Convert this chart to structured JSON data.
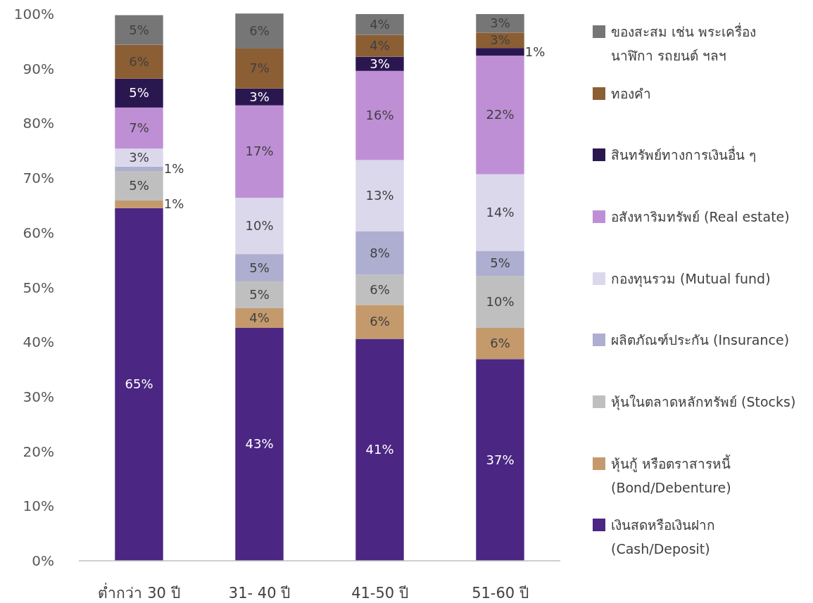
{
  "chart_data": {
    "type": "bar",
    "stacked": true,
    "legend": "right",
    "grid": false,
    "categories": [
      "ต่ำกว่า 30 ปี",
      "31- 40 ปี",
      "41-50 ปี",
      "51-60 ปี"
    ],
    "ylim": [
      0,
      100
    ],
    "yticks": [
      {
        "value": 0,
        "label": "0%"
      },
      {
        "value": 10,
        "label": "10%"
      },
      {
        "value": 20,
        "label": "20%"
      },
      {
        "value": 30,
        "label": "30%"
      },
      {
        "value": 40,
        "label": "40%"
      },
      {
        "value": 50,
        "label": "50%"
      },
      {
        "value": 60,
        "label": "60%"
      },
      {
        "value": 70,
        "label": "70%"
      },
      {
        "value": 80,
        "label": "80%"
      },
      {
        "value": 90,
        "label": "90%"
      },
      {
        "value": 100,
        "label": "100%"
      }
    ],
    "series": [
      {
        "name": "เงินสดหรือเงินฝาก (Cash/Deposit)",
        "color": "#4b2683",
        "values": [
          64.5,
          42.6,
          40.6,
          36.9
        ],
        "value_labels": [
          "65%",
          "43%",
          "41%",
          "37%"
        ]
      },
      {
        "name": "หุ้นกู้ หรือตราสารหนี้ (Bond/Debenture)",
        "color": "#c49a6c",
        "values": [
          1.4,
          3.6,
          6.2,
          5.7
        ],
        "value_labels": [
          "1%",
          "4%",
          "6%",
          "6%"
        ]
      },
      {
        "name": "หุ้นในตลาดหลักทรัพย์ (Stocks)",
        "color": "#bfbfbf",
        "values": [
          5.4,
          4.9,
          5.5,
          9.5
        ],
        "value_labels": [
          "5%",
          "5%",
          "6%",
          "10%"
        ]
      },
      {
        "name": "ผลิตภัณฑ์ประกัน (Insurance)",
        "color": "#aeaed0",
        "values": [
          0.8,
          5.0,
          8.0,
          4.6
        ],
        "value_labels": [
          "1%",
          "5%",
          "8%",
          "5%"
        ]
      },
      {
        "name": "กองทุนรวม (Mutual fund)",
        "color": "#dcd8ec",
        "values": [
          3.3,
          10.3,
          13.0,
          14.0
        ],
        "value_labels": [
          "3%",
          "10%",
          "13%",
          "14%"
        ]
      },
      {
        "name": "อสังหาริมทรัพย์ (Real estate)",
        "color": "#bf8fd6",
        "values": [
          7.5,
          16.9,
          16.3,
          21.7
        ],
        "value_labels": [
          "7%",
          "17%",
          "16%",
          "22%"
        ]
      },
      {
        "name": "สินทรัพย์ทางการเงินอื่น ๆ",
        "color": "#2b1750",
        "values": [
          5.3,
          3.1,
          2.6,
          1.4
        ],
        "value_labels": [
          "5%",
          "3%",
          "3%",
          "1%"
        ]
      },
      {
        "name": "ทองคำ",
        "color": "#8b5e34",
        "values": [
          6.2,
          7.3,
          4.0,
          2.8
        ],
        "value_labels": [
          "6%",
          "7%",
          "4%",
          "3%"
        ]
      },
      {
        "name": "ของสะสม เช่น พระเครื่อง นาฬิกา รถยนต์ ฯลฯ",
        "color": "#767676",
        "values": [
          5.4,
          6.4,
          3.8,
          3.4
        ],
        "value_labels": [
          "5%",
          "6%",
          "4%",
          "3%"
        ]
      }
    ]
  }
}
